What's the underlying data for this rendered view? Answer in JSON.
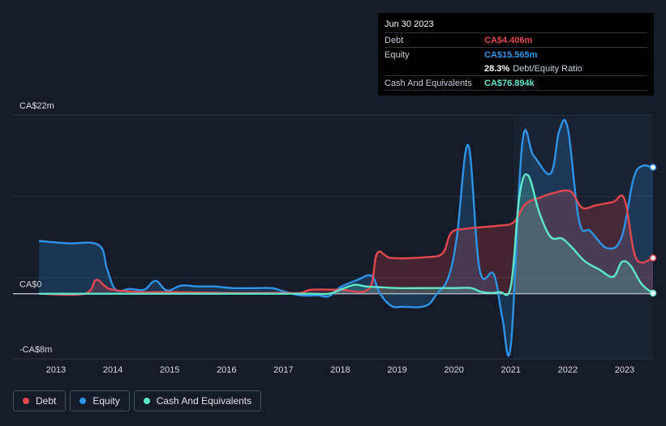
{
  "tooltip": {
    "date": "Jun 30 2023",
    "debt_label": "Debt",
    "debt_value": "CA$4.406m",
    "equity_label": "Equity",
    "equity_value": "CA$15.565m",
    "ratio_pct": "28.3%",
    "ratio_text": "Debt/Equity Ratio",
    "cash_label": "Cash And Equivalents",
    "cash_value": "CA$76.894k"
  },
  "legend": [
    {
      "label": "Debt",
      "color": "#e5474f"
    },
    {
      "label": "Equity",
      "color": "#2e93e6"
    },
    {
      "label": "Cash And Equivalents",
      "color": "#5ee8c9"
    }
  ],
  "colors": {
    "debt": "#e5474f",
    "equity": "#2e93e6",
    "cash": "#5ee8c9",
    "background": "#151b28",
    "plot_highlight": "#1a2130"
  },
  "chart_data": {
    "type": "area",
    "y_axis_labels": {
      "top": "CA$22m",
      "zero": "CA$0",
      "bottom": "-CA$8m"
    },
    "ylim": [
      -8,
      22
    ],
    "units": "CA$ millions",
    "x_ticks": [
      "2013",
      "2014",
      "2015",
      "2016",
      "2017",
      "2018",
      "2019",
      "2020",
      "2021",
      "2022",
      "2023"
    ],
    "xlim": [
      2012.7,
      2023.5
    ],
    "series": [
      {
        "name": "Debt",
        "color": "#e5474f",
        "points": [
          [
            2012.7,
            0
          ],
          [
            2013.5,
            0
          ],
          [
            2013.7,
            1.7
          ],
          [
            2013.85,
            1
          ],
          [
            2014.0,
            0.5
          ],
          [
            2014.5,
            0.2
          ],
          [
            2015,
            0.2
          ],
          [
            2016,
            0.1
          ],
          [
            2017,
            0.1
          ],
          [
            2017.3,
            0.1
          ],
          [
            2017.5,
            0.5
          ],
          [
            2018,
            0.5
          ],
          [
            2018.5,
            0.6
          ],
          [
            2018.65,
            5
          ],
          [
            2018.9,
            4.4
          ],
          [
            2019.5,
            4.5
          ],
          [
            2019.8,
            5
          ],
          [
            2019.95,
            7.5
          ],
          [
            2020.2,
            8
          ],
          [
            2020.5,
            8.2
          ],
          [
            2020.8,
            8.4
          ],
          [
            2021.05,
            8.8
          ],
          [
            2021.25,
            11
          ],
          [
            2021.5,
            11.8
          ],
          [
            2021.75,
            12.4
          ],
          [
            2022.05,
            12.6
          ],
          [
            2022.25,
            10.6
          ],
          [
            2022.5,
            10.9
          ],
          [
            2022.8,
            11.3
          ],
          [
            2023.0,
            11.6
          ],
          [
            2023.2,
            4.4
          ],
          [
            2023.5,
            4.406
          ]
        ]
      },
      {
        "name": "Equity",
        "color": "#2e93e6",
        "points": [
          [
            2012.7,
            6.5
          ],
          [
            2013.2,
            6.2
          ],
          [
            2013.75,
            6
          ],
          [
            2013.9,
            3
          ],
          [
            2014.05,
            0.5
          ],
          [
            2014.3,
            0.6
          ],
          [
            2014.55,
            0.5
          ],
          [
            2014.75,
            1.6
          ],
          [
            2014.95,
            0.4
          ],
          [
            2015.2,
            1
          ],
          [
            2015.5,
            0.9
          ],
          [
            2015.8,
            0.9
          ],
          [
            2016.1,
            0.7
          ],
          [
            2016.5,
            0.7
          ],
          [
            2016.8,
            0.7
          ],
          [
            2017.0,
            0.3
          ],
          [
            2017.3,
            -0.2
          ],
          [
            2017.6,
            -0.2
          ],
          [
            2017.8,
            -0.3
          ],
          [
            2018.0,
            0.8
          ],
          [
            2018.3,
            1.7
          ],
          [
            2018.55,
            2.2
          ],
          [
            2018.7,
            0
          ],
          [
            2018.9,
            -1.5
          ],
          [
            2019.1,
            -1.6
          ],
          [
            2019.5,
            -1.5
          ],
          [
            2019.7,
            0
          ],
          [
            2019.9,
            2
          ],
          [
            2020.05,
            7
          ],
          [
            2020.25,
            18.3
          ],
          [
            2020.45,
            3
          ],
          [
            2020.7,
            2.4
          ],
          [
            2020.85,
            -3
          ],
          [
            2021.0,
            -6.3
          ],
          [
            2021.2,
            18.5
          ],
          [
            2021.4,
            17
          ],
          [
            2021.7,
            14.8
          ],
          [
            2021.85,
            20
          ],
          [
            2022.0,
            20.4
          ],
          [
            2022.2,
            9
          ],
          [
            2022.4,
            7.7
          ],
          [
            2022.7,
            5.6
          ],
          [
            2022.95,
            7
          ],
          [
            2023.15,
            14
          ],
          [
            2023.3,
            15.7
          ],
          [
            2023.5,
            15.565
          ]
        ]
      },
      {
        "name": "Cash And Equivalents",
        "color": "#5ee8c9",
        "points": [
          [
            2012.7,
            0
          ],
          [
            2013.5,
            0
          ],
          [
            2014,
            0
          ],
          [
            2015,
            0
          ],
          [
            2016,
            0
          ],
          [
            2017,
            0
          ],
          [
            2017.5,
            0
          ],
          [
            2017.8,
            0
          ],
          [
            2018.0,
            0.5
          ],
          [
            2018.25,
            1.1
          ],
          [
            2018.45,
            0.9
          ],
          [
            2018.7,
            0.8
          ],
          [
            2019,
            0.7
          ],
          [
            2019.5,
            0.7
          ],
          [
            2020,
            0.7
          ],
          [
            2020.3,
            0.7
          ],
          [
            2020.5,
            0.2
          ],
          [
            2020.8,
            0.2
          ],
          [
            2021.0,
            1
          ],
          [
            2021.15,
            12
          ],
          [
            2021.3,
            14.6
          ],
          [
            2021.5,
            10
          ],
          [
            2021.7,
            7
          ],
          [
            2021.9,
            6.8
          ],
          [
            2022.1,
            5.5
          ],
          [
            2022.3,
            4
          ],
          [
            2022.55,
            3
          ],
          [
            2022.8,
            2.1
          ],
          [
            2022.95,
            3.9
          ],
          [
            2023.1,
            3.5
          ],
          [
            2023.3,
            1.2
          ],
          [
            2023.5,
            0.077
          ]
        ]
      }
    ]
  }
}
